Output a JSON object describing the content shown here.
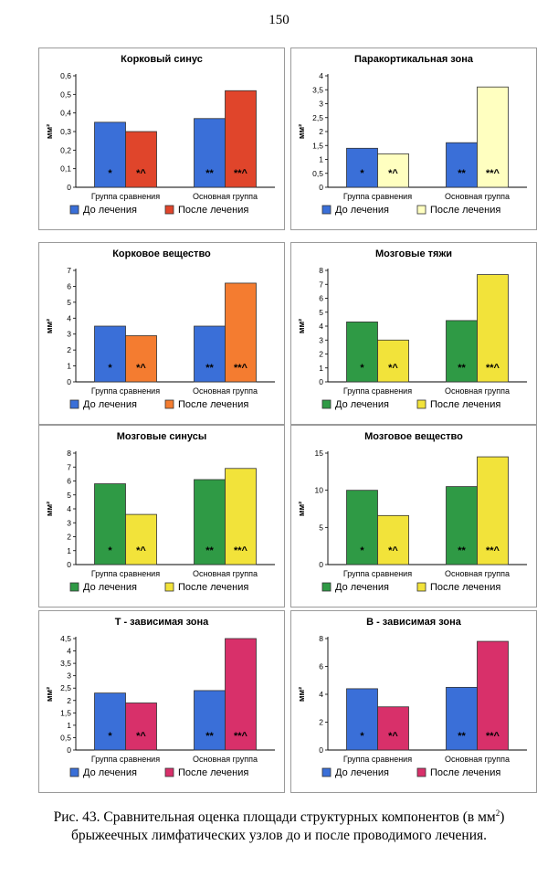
{
  "page_number": "150",
  "caption": {
    "prefix": "Рис. 43. Сравнительная оценка площади структурных компонентов (в мм",
    "sup": "2",
    "suffix": ") брыжеечных лимфатических узлов до и после проводимого лечения."
  },
  "chart_data": [
    {
      "type": "bar",
      "title": "Корковый синус",
      "ylabel": "мм²",
      "ylim": [
        0,
        0.6
      ],
      "yticks": [
        "0",
        "0,1",
        "0,2",
        "0,3",
        "0,4",
        "0,5",
        "0,6"
      ],
      "categories": [
        "Группа сравнения",
        "Основная группа"
      ],
      "series": [
        {
          "name": "До лечения",
          "values": [
            0.35,
            0.37
          ],
          "color": "#3a6fd8",
          "labels": [
            "*",
            "**"
          ]
        },
        {
          "name": "После лечения",
          "values": [
            0.3,
            0.52
          ],
          "color": "#e0452b",
          "labels": [
            "*^",
            "**^"
          ]
        }
      ]
    },
    {
      "type": "bar",
      "title": "Паракортикальная зона",
      "ylabel": "мм²",
      "ylim": [
        0,
        4
      ],
      "yticks": [
        "0",
        "0,5",
        "1",
        "1,5",
        "2",
        "2,5",
        "3",
        "3,5",
        "4"
      ],
      "categories": [
        "Группа сравнения",
        "Основная группа"
      ],
      "series": [
        {
          "name": "До лечения",
          "values": [
            1.4,
            1.6
          ],
          "color": "#3a6fd8",
          "labels": [
            "*",
            "**"
          ]
        },
        {
          "name": "После лечения",
          "values": [
            1.2,
            3.6
          ],
          "color": "#ffffc0",
          "labels": [
            "*^",
            "**^"
          ]
        }
      ]
    },
    {
      "type": "bar",
      "title": "Корковое вещество",
      "ylabel": "мм²",
      "ylim": [
        0,
        7
      ],
      "yticks": [
        "0",
        "1",
        "2",
        "3",
        "4",
        "5",
        "6",
        "7"
      ],
      "categories": [
        "Группа сравнения",
        "Основная группа"
      ],
      "series": [
        {
          "name": "До лечения",
          "values": [
            3.5,
            3.5
          ],
          "color": "#3a6fd8",
          "labels": [
            "*",
            "**"
          ]
        },
        {
          "name": "После лечения",
          "values": [
            2.9,
            6.2
          ],
          "color": "#f47c30",
          "labels": [
            "*^",
            "**^"
          ]
        }
      ]
    },
    {
      "type": "bar",
      "title": "Мозговые тяжи",
      "ylabel": "мм²",
      "ylim": [
        0,
        8
      ],
      "yticks": [
        "0",
        "1",
        "2",
        "3",
        "4",
        "5",
        "6",
        "7",
        "8"
      ],
      "categories": [
        "Группа сравнения",
        "Основная группа"
      ],
      "series": [
        {
          "name": "До лечения",
          "values": [
            4.3,
            4.4
          ],
          "color": "#2f9a45",
          "labels": [
            "*",
            "**"
          ]
        },
        {
          "name": "После лечения",
          "values": [
            3.0,
            7.7
          ],
          "color": "#f2e33a",
          "labels": [
            "*^",
            "**^"
          ]
        }
      ]
    },
    {
      "type": "bar",
      "title": "Мозговые синусы",
      "ylabel": "мм²",
      "ylim": [
        0,
        8
      ],
      "yticks": [
        "0",
        "1",
        "2",
        "3",
        "4",
        "5",
        "6",
        "7",
        "8"
      ],
      "categories": [
        "Группа сравнения",
        "Основная группа"
      ],
      "series": [
        {
          "name": "До лечения",
          "values": [
            5.8,
            6.1
          ],
          "color": "#2f9a45",
          "labels": [
            "*",
            "**"
          ]
        },
        {
          "name": "После лечения",
          "values": [
            3.6,
            6.9
          ],
          "color": "#f2e33a",
          "labels": [
            "*^",
            "**^"
          ]
        }
      ]
    },
    {
      "type": "bar",
      "title": "Мозговое вещество",
      "ylabel": "мм²",
      "ylim": [
        0,
        15
      ],
      "yticks": [
        "0",
        "5",
        "10",
        "15"
      ],
      "categories": [
        "Группа сравнения",
        "Основная группа"
      ],
      "series": [
        {
          "name": "До лечения",
          "values": [
            10.0,
            10.5
          ],
          "color": "#2f9a45",
          "labels": [
            "*",
            "**"
          ]
        },
        {
          "name": "После лечения",
          "values": [
            6.6,
            14.5
          ],
          "color": "#f2e33a",
          "labels": [
            "*^",
            "**^"
          ]
        }
      ]
    },
    {
      "type": "bar",
      "title": "Т - зависимая зона",
      "ylabel": "мм²",
      "ylim": [
        0,
        4.5
      ],
      "yticks": [
        "0",
        "0,5",
        "1",
        "1,5",
        "2",
        "2,5",
        "3",
        "3,5",
        "4",
        "4,5"
      ],
      "categories": [
        "Группа сравнения",
        "Основная группа"
      ],
      "series": [
        {
          "name": "До лечения",
          "values": [
            2.3,
            2.4
          ],
          "color": "#3a6fd8",
          "labels": [
            "*",
            "**"
          ]
        },
        {
          "name": "После лечения",
          "values": [
            1.9,
            4.5
          ],
          "color": "#d8306a",
          "labels": [
            "*^",
            "**^"
          ]
        }
      ]
    },
    {
      "type": "bar",
      "title": "В - зависимая зона",
      "ylabel": "мм²",
      "ylim": [
        0,
        8
      ],
      "yticks": [
        "0",
        "2",
        "4",
        "6",
        "8"
      ],
      "categories": [
        "Группа сравнения",
        "Основная группа"
      ],
      "series": [
        {
          "name": "До лечения",
          "values": [
            4.4,
            4.5
          ],
          "color": "#3a6fd8",
          "labels": [
            "*",
            "**"
          ]
        },
        {
          "name": "После лечения",
          "values": [
            3.1,
            7.8
          ],
          "color": "#d8306a",
          "labels": [
            "*^",
            "**^"
          ]
        }
      ]
    }
  ]
}
